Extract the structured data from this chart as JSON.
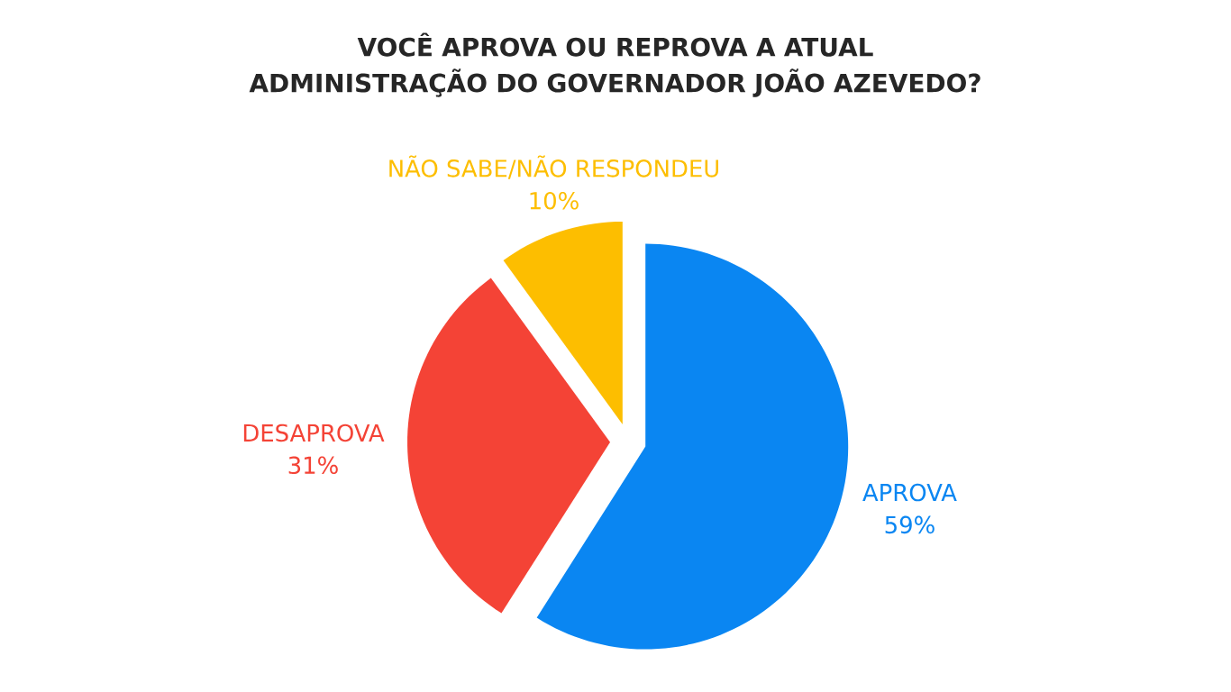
{
  "chart_data": {
    "type": "pie",
    "title": "VOCÊ APROVA OU REPROVA A ATUAL ADMINISTRAÇÃO DO GOVERNADOR JOÃO AZEVEDO?",
    "categories": [
      "APROVA",
      "DESAPROVA",
      "NÃO SABE/NÃO RESPONDEU"
    ],
    "values": [
      59,
      31,
      10
    ],
    "value_labels": [
      "59%",
      "31%",
      "10%"
    ],
    "colors": [
      "#0a86f2",
      "#f44336",
      "#fdbe00"
    ]
  }
}
